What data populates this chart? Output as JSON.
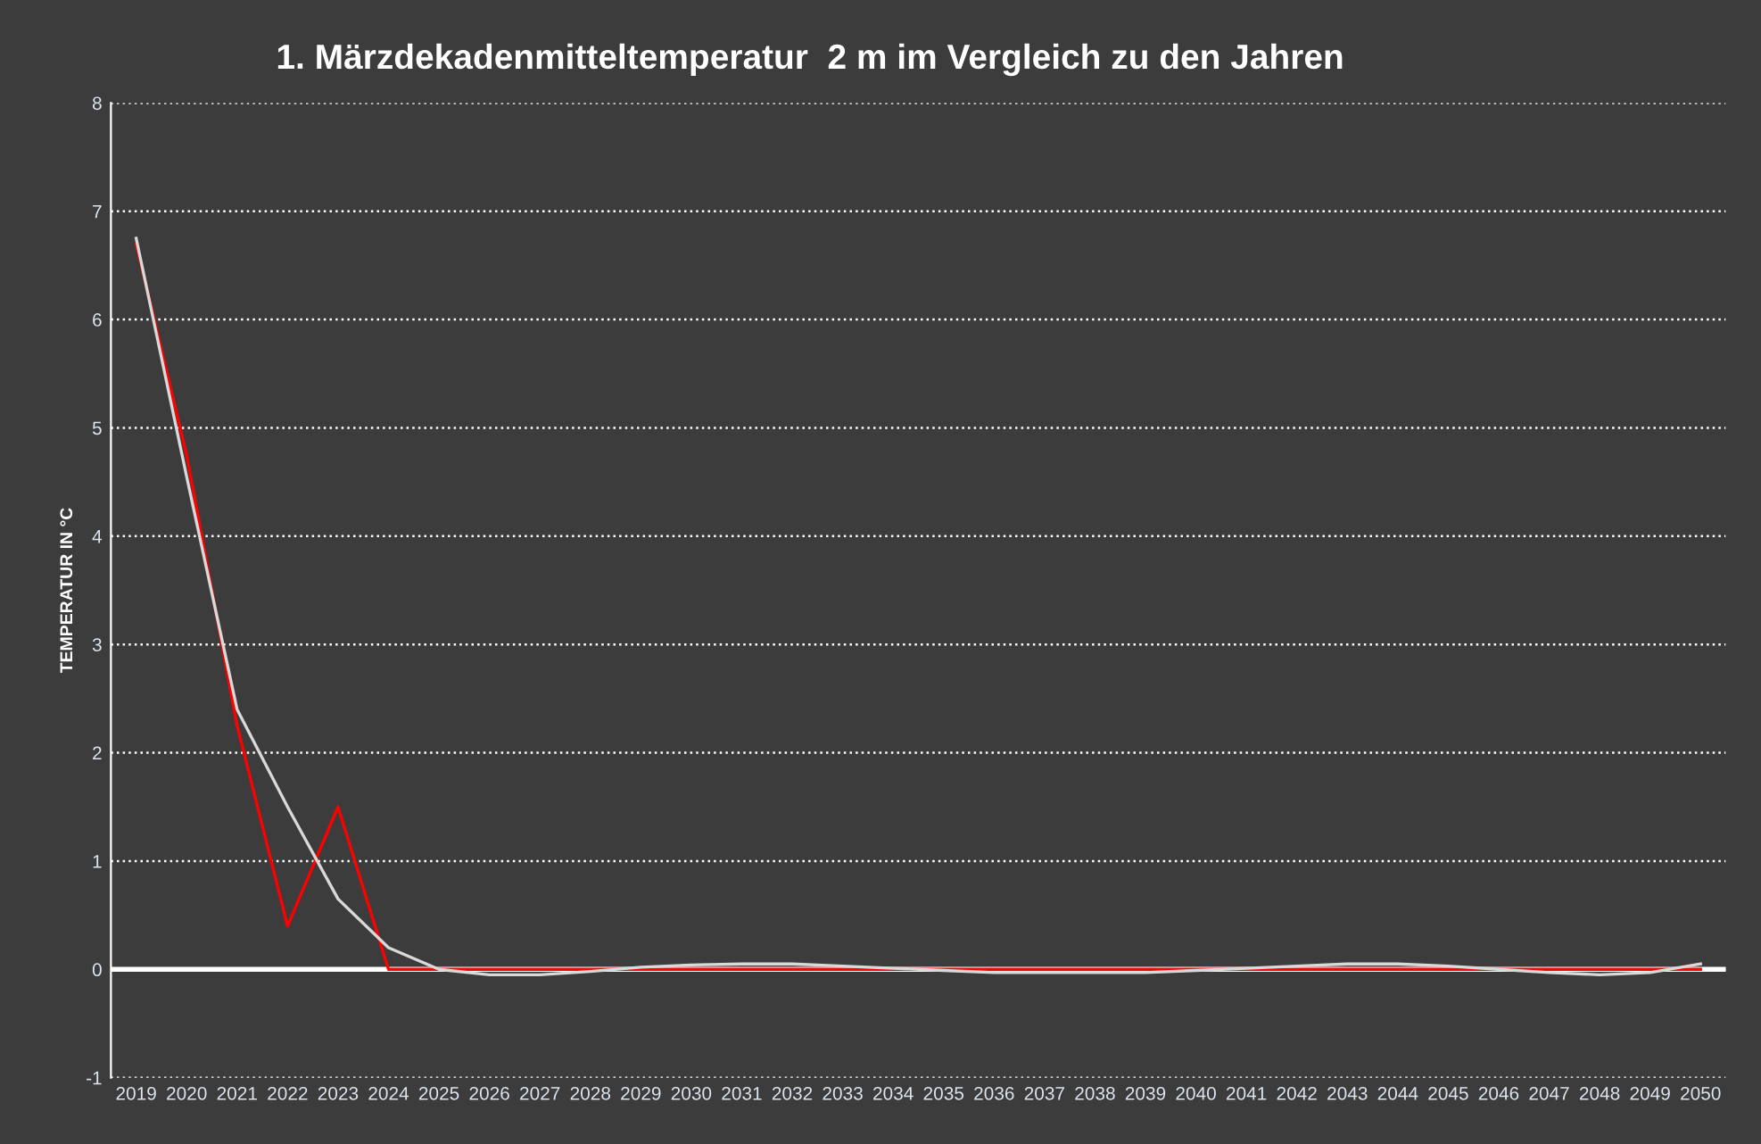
{
  "chart_data": {
    "type": "line",
    "title": "1. Märzdekadenmitteltemperatur  2 m im Vergleich zu den Jahren",
    "ylabel": "TEMPERATUR IN °C",
    "categories": [
      "2019",
      "2020",
      "2021",
      "2022",
      "2023",
      "2024",
      "2025",
      "2026",
      "2027",
      "2028",
      "2029",
      "2030",
      "2031",
      "2032",
      "2033",
      "2034",
      "2035",
      "2036",
      "2037",
      "2038",
      "2039",
      "2040",
      "2041",
      "2042",
      "2043",
      "2044",
      "2045",
      "2046",
      "2047",
      "2048",
      "2049",
      "2050"
    ],
    "series": [
      {
        "color": "#ff0000",
        "values": [
          6.7,
          4.75,
          2.25,
          0.4,
          1.5,
          0,
          0,
          0,
          0,
          0,
          0,
          0,
          0,
          0,
          0,
          0,
          0,
          0,
          0,
          0,
          0,
          0,
          0,
          0,
          0,
          0,
          0,
          0,
          0,
          0,
          0,
          0
        ]
      },
      {
        "color": "#d9d9d9",
        "values": [
          6.75,
          4.55,
          2.4,
          1.5,
          0.65,
          0.2,
          0.0,
          -0.05,
          -0.05,
          -0.02,
          0.02,
          0.04,
          0.05,
          0.05,
          0.03,
          0.01,
          -0.01,
          -0.03,
          -0.03,
          -0.03,
          -0.03,
          -0.01,
          0.01,
          0.03,
          0.05,
          0.05,
          0.03,
          0.0,
          -0.03,
          -0.05,
          -0.03,
          0.05
        ]
      }
    ],
    "ylim": [
      -1,
      8
    ],
    "yticks": [
      -1,
      0,
      1,
      2,
      3,
      4,
      5,
      6,
      7,
      8
    ],
    "grid": "y",
    "legend": false,
    "line_style": "solid",
    "marker": "none",
    "ref_lines": [
      {
        "axis": "y",
        "value": 0,
        "color": "#ffffff"
      }
    ]
  }
}
